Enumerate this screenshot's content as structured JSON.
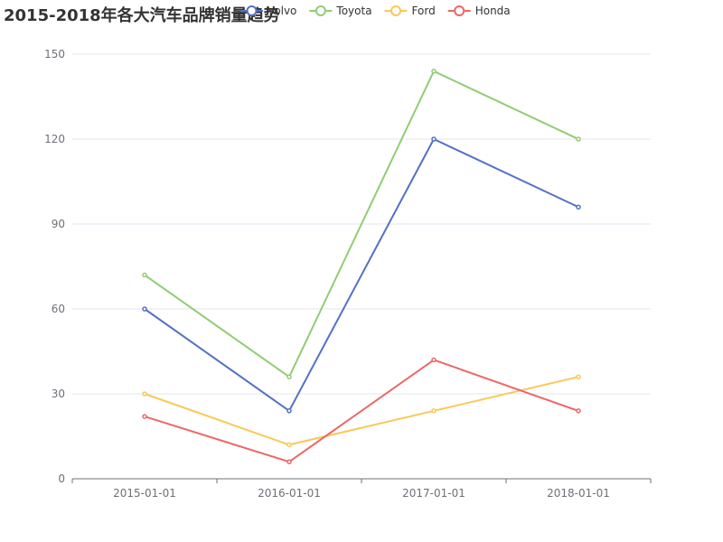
{
  "chart_data": {
    "type": "line",
    "title": "2015-2018年各大汽车品牌销量趋势",
    "categories": [
      "2015-01-01",
      "2016-01-01",
      "2017-01-01",
      "2018-01-01"
    ],
    "ylim": [
      0,
      150
    ],
    "yticks": [
      0,
      30,
      60,
      90,
      120,
      150
    ],
    "grid": true,
    "legend_position": "top",
    "series": [
      {
        "name": "Volvo",
        "color": "#5470c6",
        "values": [
          60,
          24,
          120,
          96
        ]
      },
      {
        "name": "Toyota",
        "color": "#91cc75",
        "values": [
          72,
          36,
          144,
          120
        ]
      },
      {
        "name": "Ford",
        "color": "#fac858",
        "values": [
          30,
          12,
          24,
          36
        ]
      },
      {
        "name": "Honda",
        "color": "#ee6666",
        "values": [
          22,
          6,
          42,
          24
        ]
      }
    ]
  }
}
